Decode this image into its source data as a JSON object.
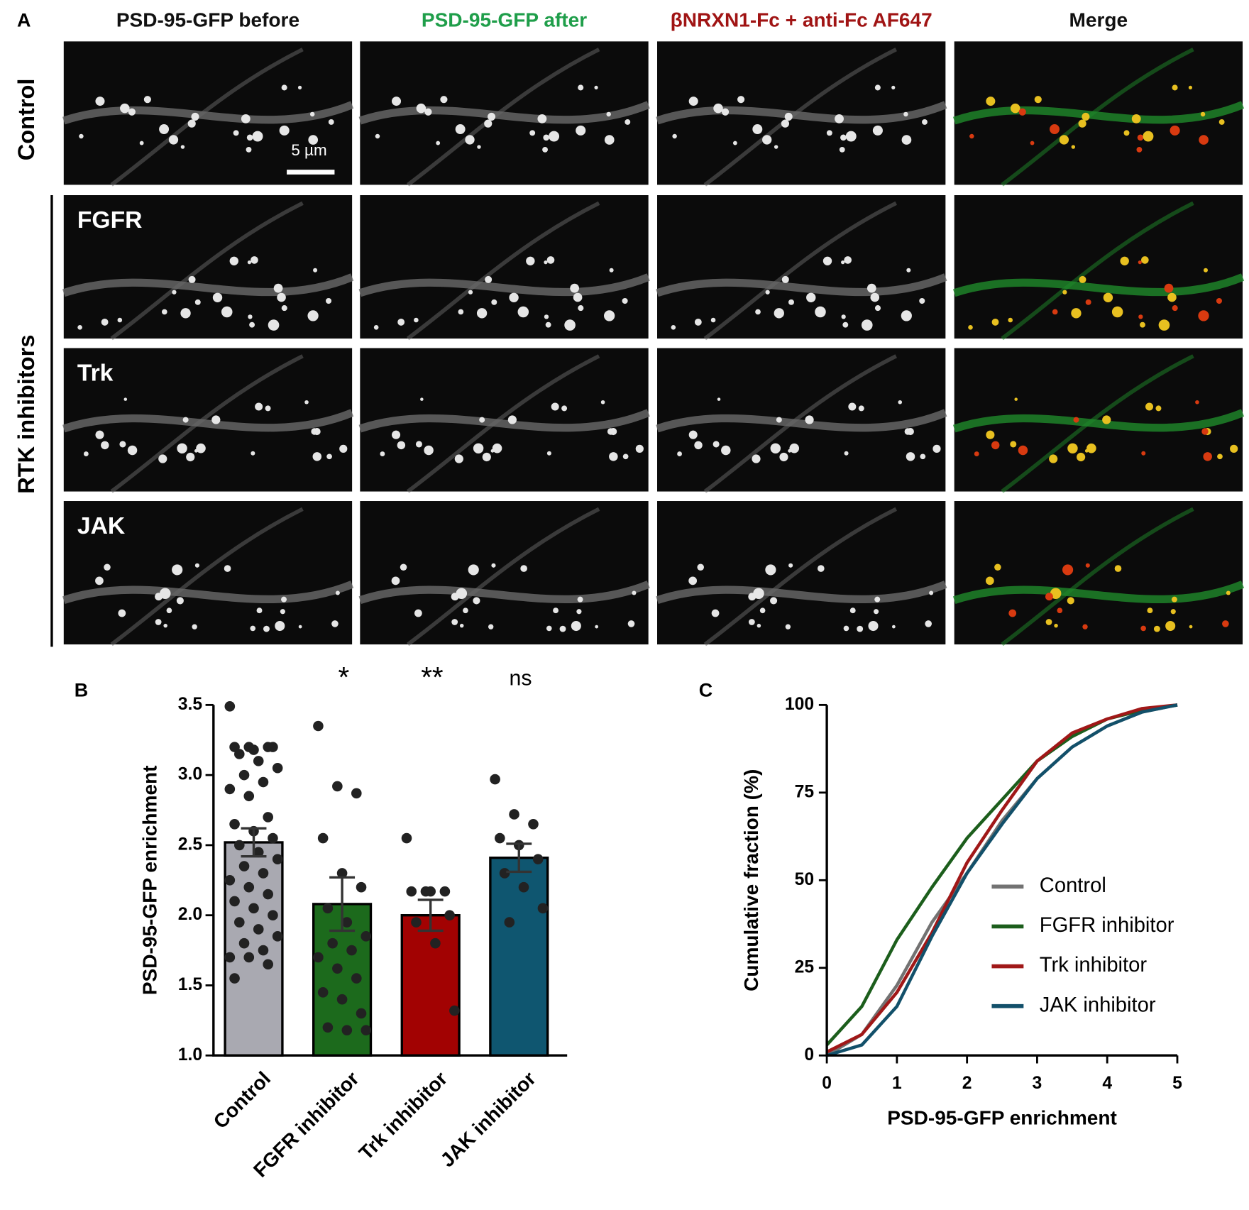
{
  "panel_a": {
    "label": "A",
    "columns": [
      "PSD-95-GFP before",
      "PSD-95-GFP after",
      "βNRXN1-Fc + anti-Fc AF647",
      "Merge"
    ],
    "column_colors": [
      "#111111",
      "#1f9e4a",
      "#a01414",
      "#111111"
    ],
    "rows": [
      null,
      "FGFR",
      "Trk",
      "JAK"
    ],
    "row_group_labels": [
      "Control",
      "RTK inhibitors"
    ],
    "scale_bar": "5 µm"
  },
  "chart_data": [
    {
      "type": "bar",
      "panel_label": "B",
      "ylabel": "PSD-95-GFP enrichment",
      "categories": [
        "Control",
        "FGFR inhibitor",
        "Trk inhibitor",
        "JAK inhibitor"
      ],
      "values": [
        2.52,
        2.08,
        2.0,
        2.41
      ],
      "errors": [
        0.1,
        0.19,
        0.11,
        0.1
      ],
      "colors": [
        "#a9a9b1",
        "#1c6a1c",
        "#a20202",
        "#0f5670"
      ],
      "annotations": [
        null,
        "*",
        "**",
        "ns"
      ],
      "points": [
        [
          3.49,
          3.2,
          3.2,
          3.2,
          3.18,
          3.2,
          3.15,
          3.1,
          3.05,
          3.0,
          2.95,
          2.9,
          2.85,
          2.7,
          2.65,
          2.6,
          2.55,
          2.5,
          2.45,
          2.4,
          2.35,
          2.3,
          2.25,
          2.2,
          2.15,
          2.1,
          2.05,
          2.0,
          1.95,
          1.9,
          1.85,
          1.8,
          1.75,
          1.7,
          1.7,
          1.65,
          1.55
        ],
        [
          3.35,
          2.92,
          2.87,
          2.55,
          2.3,
          2.2,
          2.05,
          1.95,
          1.85,
          1.8,
          1.75,
          1.7,
          1.62,
          1.55,
          1.45,
          1.4,
          1.3,
          1.2,
          1.18,
          1.18
        ],
        [
          2.55,
          2.17,
          2.17,
          2.17,
          2.17,
          2.0,
          1.95,
          1.8,
          1.32
        ],
        [
          2.97,
          2.72,
          2.65,
          2.55,
          2.5,
          2.4,
          2.3,
          2.2,
          2.05,
          1.95
        ]
      ],
      "ylim": [
        1,
        3.5
      ],
      "yticks": [
        {
          "value": 1,
          "label": "1.0"
        },
        1.5,
        {
          "value": 2,
          "label": "2.0"
        },
        2.5,
        {
          "value": 3,
          "label": "3.0"
        },
        3.5
      ]
    },
    {
      "type": "line",
      "panel_label": "C",
      "xlabel": "PSD-95-GFP enrichment",
      "ylabel": "Cumulative fraction (%)",
      "x": [
        0,
        0.5,
        1,
        1.5,
        2,
        2.5,
        3,
        3.5,
        4,
        4.5,
        5
      ],
      "series": [
        {
          "name": "Control",
          "color": "#727272",
          "values": [
            0,
            6,
            20,
            38,
            52,
            67,
            79,
            88,
            94,
            98,
            100
          ]
        },
        {
          "name": "FGFR inhibitor",
          "color": "#1c5e1c",
          "values": [
            3,
            14,
            33,
            48,
            62,
            73,
            84,
            91,
            96,
            98.5,
            100
          ]
        },
        {
          "name": "Trk inhibitor",
          "color": "#a01818",
          "values": [
            1,
            6,
            18,
            35,
            55,
            70,
            84,
            92,
            96,
            99,
            100
          ]
        },
        {
          "name": "JAK inhibitor",
          "color": "#12506a",
          "values": [
            0,
            3,
            14,
            34,
            52,
            66,
            79,
            88,
            94,
            98,
            100
          ]
        }
      ],
      "xlim": [
        0,
        5
      ],
      "xticks": [
        0,
        1,
        2,
        3,
        4,
        5
      ],
      "ylim": [
        0,
        100
      ],
      "yticks": [
        0,
        25,
        50,
        75,
        100
      ],
      "legend": "lower right"
    }
  ]
}
